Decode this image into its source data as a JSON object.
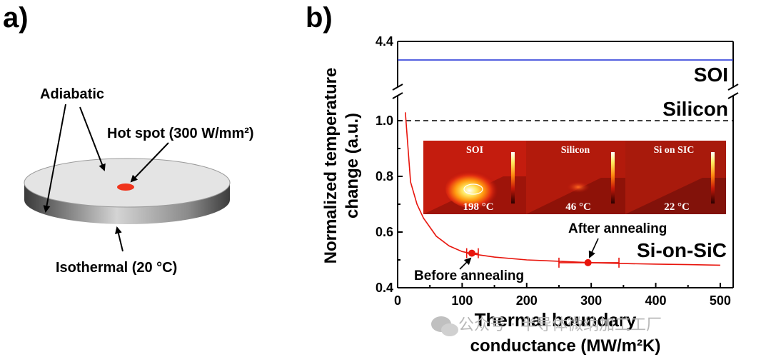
{
  "panel_a": {
    "label": "a)",
    "adiabatic": "Adiabatic",
    "hotspot": "Hot spot (300 W/mm²)",
    "isothermal": "Isothermal (20 °C)"
  },
  "panel_b": {
    "label": "b)"
  },
  "chart_data": {
    "type": "line",
    "xlabel_line1": "Thermal boundary",
    "xlabel_line2": "conductance (MW/m²K)",
    "ylabel_line1": "Normalized temperature",
    "ylabel_line2": "change (a.u.)",
    "xlim": [
      0,
      520
    ],
    "ylim": [
      0.4,
      4.4
    ],
    "y_axis_break": [
      1.05,
      4.2
    ],
    "x_ticks": [
      "0",
      "100",
      "200",
      "300",
      "400",
      "500"
    ],
    "y_ticks": [
      "0.4",
      "0.6",
      "0.8",
      "1.0",
      "4.4"
    ],
    "reference_lines": [
      {
        "name": "SOI",
        "value": 4.3,
        "color": "#1f2fd6",
        "style": "solid"
      },
      {
        "name": "Silicon",
        "value": 1.0,
        "color": "#000000",
        "style": "dashed"
      }
    ],
    "series": [
      {
        "name": "Si-on-SiC",
        "color": "#e8140c",
        "x": [
          12,
          20,
          30,
          40,
          60,
          80,
          100,
          120,
          150,
          200,
          250,
          300,
          350,
          400,
          450,
          500
        ],
        "y": [
          1.03,
          0.78,
          0.7,
          0.65,
          0.585,
          0.55,
          0.53,
          0.52,
          0.51,
          0.5,
          0.495,
          0.49,
          0.487,
          0.485,
          0.483,
          0.481
        ]
      }
    ],
    "markers": [
      {
        "label": "Before annealing",
        "x": 115,
        "y": 0.524,
        "x_err": [
          107,
          125
        ]
      },
      {
        "label": "After annealing",
        "x": 295,
        "y": 0.49,
        "x_err": [
          250,
          343
        ]
      }
    ],
    "annotations": [
      "SOI",
      "Silicon",
      "Si-on-SiC"
    ],
    "inset": [
      {
        "title": "SOI",
        "temperature": "198 °C"
      },
      {
        "title": "Silicon",
        "temperature": "46 °C"
      },
      {
        "title": "Si on SIC",
        "temperature": "22 °C"
      }
    ]
  },
  "watermark": "公众号 · 半导体微纳加工工厂"
}
